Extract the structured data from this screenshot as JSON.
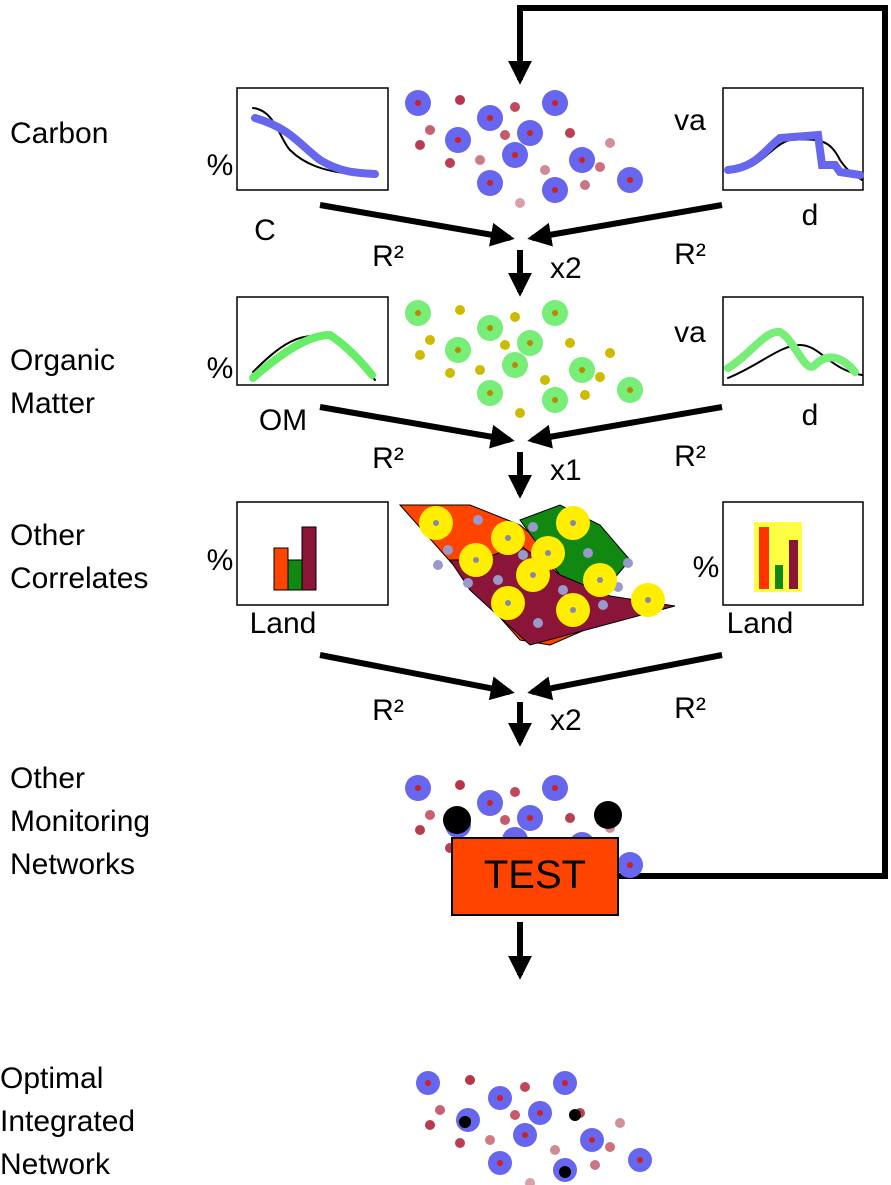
{
  "rows": [
    {
      "label": [
        "Carbon"
      ],
      "left": {
        "y_label": "%",
        "x_label": "C"
      },
      "right": {
        "y_label": "va",
        "x_label": "d"
      },
      "fit_left": "R²",
      "fit_right": "R²",
      "multiplier": "x2"
    },
    {
      "label": [
        "Organic",
        "Matter"
      ],
      "left": {
        "y_label": "%",
        "x_label": "OM"
      },
      "right": {
        "y_label": "va",
        "x_label": "d"
      },
      "fit_left": "R²",
      "fit_right": "R²",
      "multiplier": "x1"
    },
    {
      "label": [
        "Other",
        "Correlates"
      ],
      "left": {
        "y_label": "%",
        "x_label": "Land"
      },
      "right": {
        "y_label": "%",
        "x_label": "Land"
      },
      "fit_left": "R²",
      "fit_right": "R²",
      "multiplier": "x2"
    }
  ],
  "other_networks": [
    "Other",
    "Monitoring",
    "Networks"
  ],
  "test": "TEST",
  "optimal": [
    "Optimal",
    "Integrated",
    "Network"
  ]
}
